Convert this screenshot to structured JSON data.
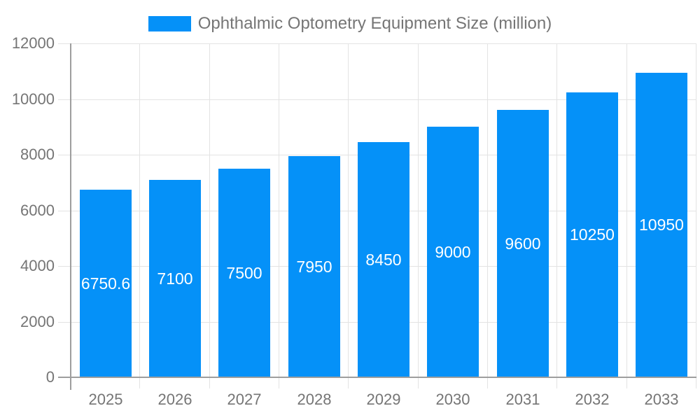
{
  "legend": {
    "label": "Ophthalmic Optometry Equipment Size (million)"
  },
  "colors": {
    "bar": "#0591f8",
    "grid": "#e3e3e3",
    "axis": "#9e9e9e",
    "tick_text": "#757575",
    "value_text": "#ffffff",
    "background": "#ffffff"
  },
  "chart_data": {
    "type": "bar",
    "title": "Ophthalmic Optometry Equipment Size (million)",
    "categories": [
      "2025",
      "2026",
      "2027",
      "2028",
      "2029",
      "2030",
      "2031",
      "2032",
      "2033"
    ],
    "values": [
      6750.6,
      7100,
      7500,
      7950,
      8450,
      9000,
      9600,
      10250,
      10950
    ],
    "value_labels": [
      "6750.6",
      "7100",
      "7500",
      "7950",
      "8450",
      "9000",
      "9600",
      "10250",
      "10950"
    ],
    "xlabel": "",
    "ylabel": "",
    "ylim": [
      0,
      12000
    ],
    "yticks": [
      0,
      2000,
      4000,
      6000,
      8000,
      10000,
      12000
    ],
    "grid": true,
    "legend_position": "top",
    "bar_color": "#0591f8"
  }
}
